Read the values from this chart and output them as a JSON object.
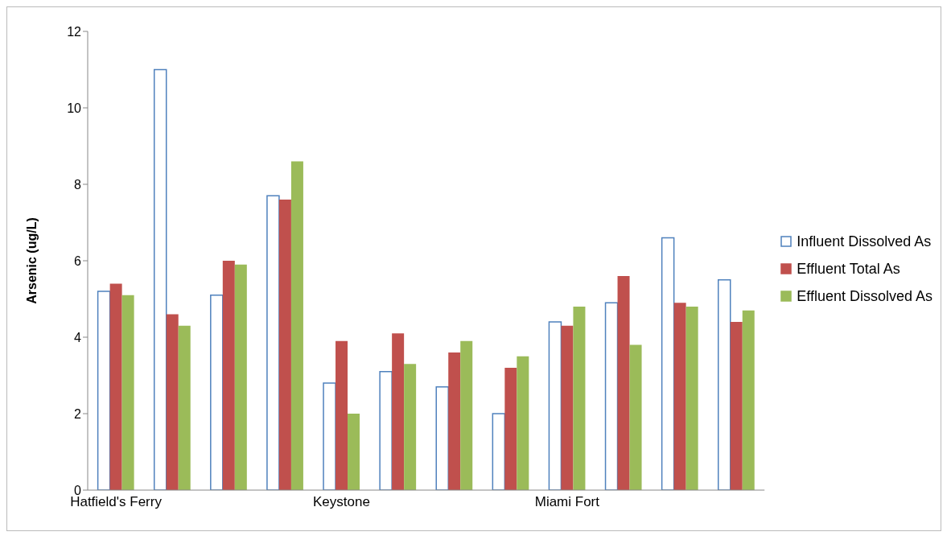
{
  "chart_data": {
    "type": "bar",
    "ylabel": "Arsenic (ug/L)",
    "categories": [
      "Hatfield's Ferry",
      null,
      null,
      null,
      "Keystone",
      null,
      null,
      null,
      "Miami Fort",
      null,
      null,
      null
    ],
    "series": [
      {
        "name": "Influent Dissolved As",
        "color": "#4f81bd",
        "values": [
          5.2,
          11.0,
          5.1,
          7.7,
          2.8,
          3.1,
          2.7,
          2.0,
          4.4,
          4.9,
          6.6,
          5.5
        ]
      },
      {
        "name": "Effluent Total As",
        "color": "#c0504d",
        "values": [
          5.4,
          4.6,
          6.0,
          7.6,
          3.9,
          4.1,
          3.6,
          3.2,
          4.3,
          5.6,
          4.9,
          4.4
        ]
      },
      {
        "name": "Effluent Dissolved As",
        "color": "#9bbb59",
        "values": [
          5.1,
          4.3,
          5.9,
          8.6,
          2.0,
          3.3,
          3.9,
          3.5,
          4.8,
          3.8,
          4.8,
          4.7
        ]
      }
    ],
    "ylim": [
      0,
      12
    ],
    "yticks": [
      0,
      2,
      4,
      6,
      8,
      10,
      12
    ],
    "grid": false,
    "legend": "right"
  }
}
